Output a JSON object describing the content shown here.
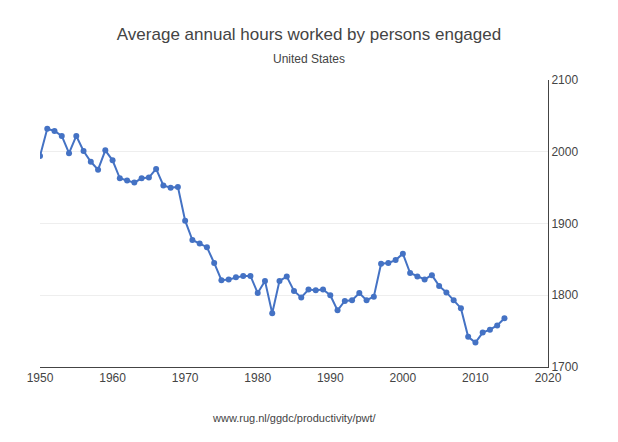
{
  "chart_data": {
    "type": "line",
    "title": "Average annual hours worked by persons engaged",
    "subtitle": "United States",
    "annotations": [
      "www.rug.nl/ggdc/productivity/pwt/"
    ],
    "x": [
      1950,
      1951,
      1952,
      1953,
      1954,
      1955,
      1956,
      1957,
      1958,
      1959,
      1960,
      1961,
      1962,
      1963,
      1964,
      1965,
      1966,
      1967,
      1968,
      1969,
      1970,
      1971,
      1972,
      1973,
      1974,
      1975,
      1976,
      1977,
      1978,
      1979,
      1980,
      1981,
      1982,
      1983,
      1984,
      1985,
      1986,
      1987,
      1988,
      1989,
      1990,
      1991,
      1992,
      1993,
      1994,
      1995,
      1996,
      1997,
      1998,
      1999,
      2000,
      2001,
      2002,
      2003,
      2004,
      2005,
      2006,
      2007,
      2008,
      2009,
      2010,
      2011,
      2012,
      2013,
      2014
    ],
    "values": [
      1994,
      2032,
      2029,
      2022,
      1998,
      2022,
      2001,
      1986,
      1975,
      2002,
      1988,
      1963,
      1960,
      1957,
      1963,
      1964,
      1976,
      1953,
      1950,
      1951,
      1904,
      1877,
      1872,
      1867,
      1845,
      1821,
      1822,
      1825,
      1827,
      1827,
      1803,
      1820,
      1775,
      1820,
      1826,
      1806,
      1797,
      1808,
      1807,
      1808,
      1800,
      1779,
      1792,
      1793,
      1803,
      1793,
      1798,
      1844,
      1845,
      1849,
      1858,
      1831,
      1826,
      1822,
      1828,
      1813,
      1804,
      1793,
      1782,
      1742,
      1734,
      1748,
      1752,
      1758,
      1768
    ],
    "color": "#4472C4",
    "marker": "circle",
    "xlim": [
      1950,
      2020
    ],
    "xticks": [
      1950,
      1960,
      1970,
      1980,
      1990,
      2000,
      2010,
      2020
    ],
    "ylim": [
      1700,
      2100
    ],
    "yticks": [
      1700,
      1800,
      1900,
      2000,
      2100
    ],
    "grid": true
  }
}
